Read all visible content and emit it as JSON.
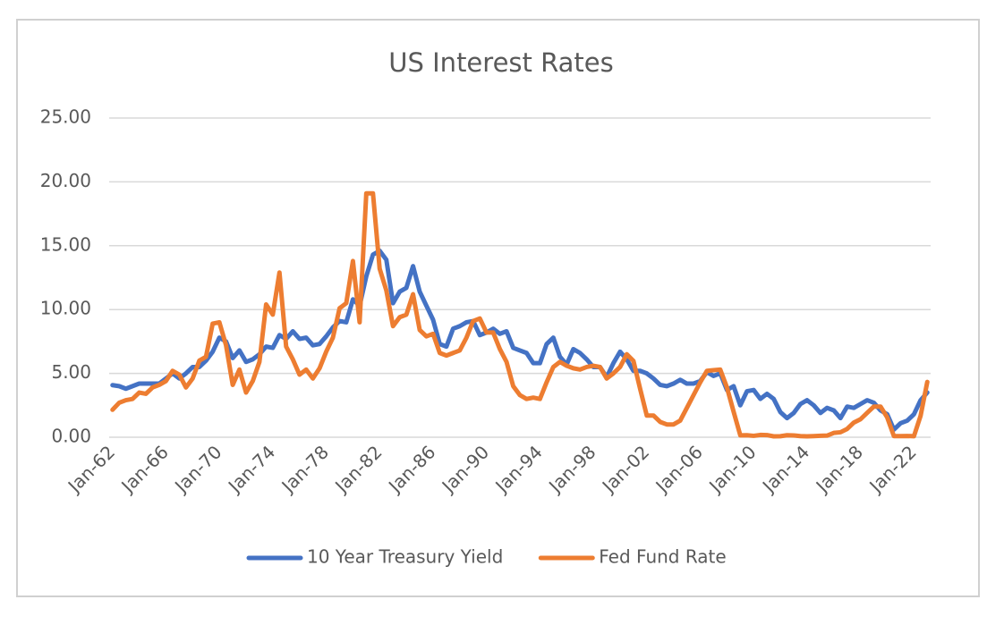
{
  "chart_data": {
    "type": "line",
    "title": "US Interest Rates",
    "categories": [
      "Jan-62",
      null,
      null,
      null,
      null,
      null,
      null,
      null,
      "Jan-66",
      null,
      null,
      null,
      null,
      null,
      null,
      null,
      "Jan-70",
      null,
      null,
      null,
      null,
      null,
      null,
      null,
      "Jan-74",
      null,
      null,
      null,
      null,
      null,
      null,
      null,
      "Jan-78",
      null,
      null,
      null,
      null,
      null,
      null,
      null,
      "Jan-82",
      null,
      null,
      null,
      null,
      null,
      null,
      null,
      "Jan-86",
      null,
      null,
      null,
      null,
      null,
      null,
      null,
      "Jan-90",
      null,
      null,
      null,
      null,
      null,
      null,
      null,
      "Jan-94",
      null,
      null,
      null,
      null,
      null,
      null,
      null,
      "Jan-98",
      null,
      null,
      null,
      null,
      null,
      null,
      null,
      "Jan-02",
      null,
      null,
      null,
      null,
      null,
      null,
      null,
      "Jan-06",
      null,
      null,
      null,
      null,
      null,
      null,
      null,
      "Jan-10",
      null,
      null,
      null,
      null,
      null,
      null,
      null,
      "Jan-14",
      null,
      null,
      null,
      null,
      null,
      null,
      null,
      "Jan-18",
      null,
      null,
      null,
      null,
      null,
      null,
      null,
      "Jan-22",
      null,
      null
    ],
    "series": [
      {
        "name": "10 Year Treasury Yield",
        "color": "#4472c4",
        "values": [
          4.08,
          4.0,
          3.8,
          4.0,
          4.2,
          4.2,
          4.2,
          4.2,
          4.6,
          5.0,
          4.6,
          5.0,
          5.5,
          5.5,
          6.0,
          6.7,
          7.8,
          7.5,
          6.2,
          6.8,
          5.9,
          6.1,
          6.5,
          7.1,
          7.0,
          8.0,
          7.7,
          8.3,
          7.7,
          7.8,
          7.2,
          7.3,
          7.9,
          8.6,
          9.1,
          9.0,
          10.8,
          10.3,
          12.6,
          14.3,
          14.6,
          13.9,
          10.5,
          11.4,
          11.7,
          13.4,
          11.4,
          10.3,
          9.2,
          7.3,
          7.1,
          8.5,
          8.7,
          9.0,
          9.1,
          8.0,
          8.2,
          8.5,
          8.1,
          8.3,
          7.0,
          6.8,
          6.6,
          5.8,
          5.8,
          7.3,
          7.8,
          6.3,
          5.7,
          6.9,
          6.6,
          6.1,
          5.5,
          5.5,
          4.7,
          5.8,
          6.7,
          6.1,
          5.2,
          5.2,
          5.0,
          4.6,
          4.1,
          4.0,
          4.2,
          4.5,
          4.2,
          4.2,
          4.4,
          5.1,
          4.8,
          5.0,
          3.7,
          4.0,
          2.5,
          3.6,
          3.7,
          3.0,
          3.4,
          3.0,
          1.97,
          1.5,
          1.9,
          2.6,
          2.9,
          2.5,
          1.9,
          2.3,
          2.1,
          1.5,
          2.4,
          2.3,
          2.6,
          2.9,
          2.7,
          2.1,
          1.8,
          0.6,
          1.1,
          1.3,
          1.8,
          2.9,
          3.5
        ]
      },
      {
        "name": "Fed Fund Rate",
        "color": "#ed7d31",
        "values": [
          2.15,
          2.7,
          2.9,
          3.0,
          3.5,
          3.4,
          3.9,
          4.1,
          4.4,
          5.2,
          4.9,
          3.9,
          4.6,
          6.0,
          6.3,
          8.9,
          9.0,
          7.2,
          4.1,
          5.3,
          3.5,
          4.4,
          5.9,
          10.4,
          9.6,
          12.9,
          7.1,
          6.1,
          4.9,
          5.3,
          4.6,
          5.4,
          6.7,
          7.8,
          10.1,
          10.5,
          13.8,
          9.0,
          19.1,
          19.1,
          13.2,
          11.5,
          8.7,
          9.4,
          9.6,
          11.2,
          8.4,
          7.9,
          8.1,
          6.6,
          6.4,
          6.6,
          6.8,
          7.8,
          9.1,
          9.3,
          8.2,
          8.2,
          6.9,
          5.9,
          4.0,
          3.3,
          3.0,
          3.1,
          3.0,
          4.3,
          5.5,
          5.9,
          5.6,
          5.4,
          5.3,
          5.5,
          5.6,
          5.5,
          4.6,
          5.0,
          5.5,
          6.5,
          5.98,
          3.8,
          1.7,
          1.7,
          1.2,
          1.0,
          1.0,
          1.3,
          2.3,
          3.3,
          4.3,
          5.2,
          5.25,
          5.3,
          3.9,
          2.0,
          0.15,
          0.16,
          0.11,
          0.18,
          0.17,
          0.07,
          0.08,
          0.16,
          0.14,
          0.09,
          0.07,
          0.09,
          0.11,
          0.13,
          0.34,
          0.39,
          0.65,
          1.15,
          1.41,
          1.91,
          2.4,
          2.4,
          1.55,
          0.09,
          0.09,
          0.1,
          0.08,
          1.68,
          4.33
        ]
      }
    ],
    "ylim": [
      0,
      25
    ],
    "yticks": [
      {
        "value": 0,
        "label": "0.00"
      },
      {
        "value": 5,
        "label": "5.00"
      },
      {
        "value": 10,
        "label": "10.00"
      },
      {
        "value": 15,
        "label": "15.00"
      },
      {
        "value": 20,
        "label": "20.00"
      },
      {
        "value": 25,
        "label": "25.00"
      }
    ],
    "grid": true,
    "legend": "bottom"
  }
}
